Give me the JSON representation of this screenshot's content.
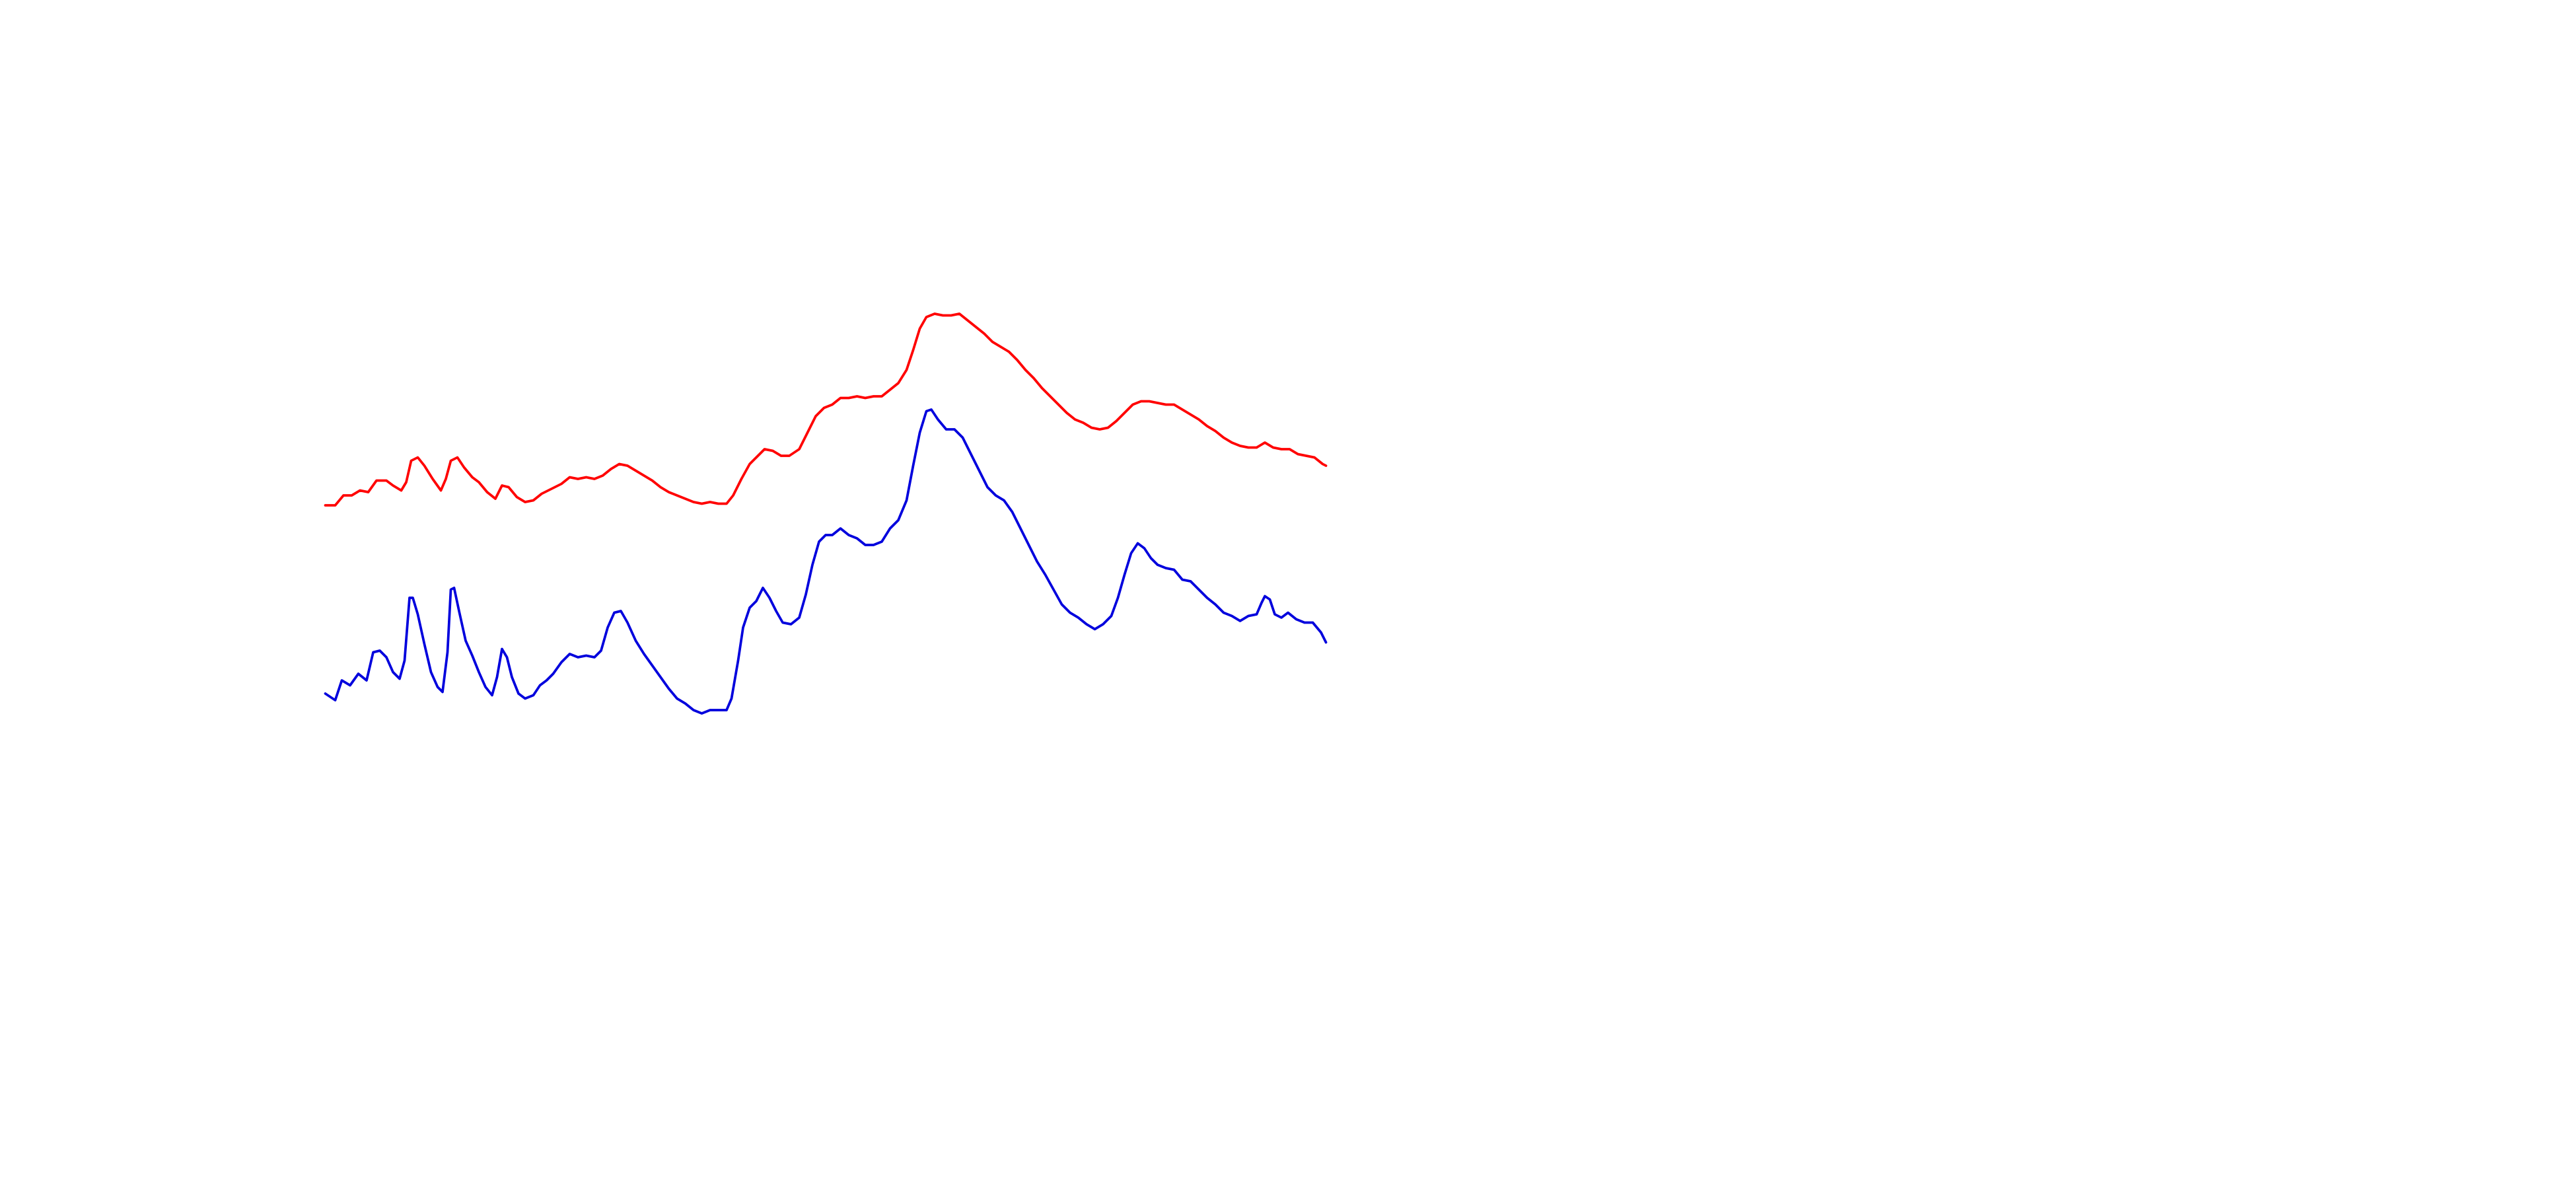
{
  "chart_data": {
    "type": "line",
    "xlim": [
      0,
      1560
    ],
    "ylim": [
      720,
      0
    ],
    "series": [
      {
        "color": "#ff0000",
        "x": [
          197,
          203,
          208,
          213,
          218,
          223,
          228,
          234,
          238,
          243,
          246,
          249,
          253,
          257,
          262,
          267,
          270,
          273,
          277,
          281,
          286,
          290,
          295,
          300,
          304,
          308,
          313,
          318,
          323,
          328,
          334,
          340,
          345,
          350,
          355,
          360,
          365,
          370,
          375,
          380,
          385,
          390,
          395,
          400,
          405,
          410,
          415,
          420,
          425,
          430,
          435,
          440,
          444,
          449,
          454,
          458,
          463,
          468,
          473,
          478,
          484,
          489,
          494,
          499,
          504,
          509,
          514,
          519,
          524,
          529,
          534,
          539,
          544,
          549,
          553,
          557,
          561,
          566,
          571,
          576,
          581,
          586,
          591,
          596,
          601,
          606,
          611,
          616,
          621,
          626,
          631,
          636,
          641,
          646,
          651,
          656,
          661,
          666,
          671,
          676,
          681,
          686,
          691,
          696,
          701,
          706,
          711,
          716,
          721,
          726,
          731,
          736,
          741,
          746,
          751,
          756,
          761,
          766,
          771,
          776,
          781,
          786,
          791,
          796,
          801,
          803
        ],
        "values": [
          306,
          306,
          300,
          300,
          297,
          298,
          291,
          291,
          294,
          297,
          292,
          279,
          277,
          282,
          290,
          297,
          290,
          279,
          277,
          283,
          289,
          292,
          298,
          302,
          294,
          295,
          301,
          304,
          303,
          299,
          296,
          293,
          289,
          290,
          289,
          290,
          288,
          284,
          281,
          282,
          285,
          288,
          291,
          295,
          298,
          300,
          302,
          304,
          305,
          304,
          305,
          305,
          300,
          290,
          281,
          277,
          272,
          273,
          276,
          276,
          272,
          262,
          252,
          247,
          245,
          241,
          241,
          240,
          241,
          240,
          240,
          236,
          232,
          224,
          212,
          199,
          192,
          190,
          191,
          191,
          190,
          194,
          198,
          202,
          207,
          210,
          213,
          218,
          224,
          229,
          235,
          240,
          245,
          250,
          254,
          256,
          259,
          260,
          259,
          255,
          250,
          245,
          243,
          243,
          244,
          245,
          245,
          248,
          251,
          254,
          258,
          261,
          265,
          268,
          270,
          271,
          271,
          268,
          271,
          272,
          272,
          275,
          276,
          277,
          281,
          282
        ]
      },
      {
        "color": "#0000dd",
        "x": [
          197,
          203,
          207,
          212,
          217,
          222,
          226,
          230,
          234,
          238,
          242,
          245,
          248,
          250,
          253,
          257,
          261,
          265,
          268,
          271,
          273,
          275,
          278,
          282,
          286,
          290,
          294,
          298,
          301,
          304,
          307,
          310,
          314,
          318,
          323,
          327,
          331,
          335,
          340,
          345,
          350,
          355,
          360,
          364,
          368,
          372,
          376,
          380,
          385,
          390,
          395,
          400,
          405,
          410,
          415,
          420,
          425,
          430,
          435,
          440,
          443,
          447,
          450,
          454,
          458,
          462,
          466,
          470,
          474,
          479,
          484,
          488,
          492,
          496,
          500,
          504,
          509,
          514,
          519,
          524,
          529,
          534,
          539,
          544,
          549,
          553,
          557,
          561,
          564,
          568,
          573,
          578,
          583,
          588,
          593,
          598,
          603,
          608,
          613,
          618,
          623,
          628,
          633,
          638,
          643,
          648,
          653,
          658,
          663,
          668,
          673,
          677,
          681,
          685,
          689,
          693,
          697,
          701,
          706,
          711,
          716,
          721,
          726,
          731,
          736,
          741,
          746,
          751,
          756,
          761,
          764,
          766,
          769,
          772,
          776,
          780,
          785,
          790,
          795,
          800,
          803
        ],
        "values": [
          420,
          424,
          412,
          415,
          408,
          412,
          395,
          394,
          398,
          407,
          411,
          400,
          362,
          362,
          372,
          390,
          407,
          416,
          419,
          395,
          357,
          356,
          370,
          388,
          397,
          407,
          416,
          421,
          410,
          393,
          398,
          410,
          420,
          423,
          421,
          415,
          412,
          408,
          401,
          396,
          398,
          397,
          398,
          394,
          380,
          371,
          370,
          377,
          388,
          396,
          403,
          410,
          417,
          423,
          426,
          430,
          432,
          430,
          430,
          430,
          423,
          400,
          380,
          368,
          364,
          356,
          362,
          370,
          377,
          378,
          374,
          360,
          342,
          328,
          324,
          324,
          320,
          324,
          326,
          330,
          330,
          328,
          320,
          315,
          303,
          282,
          262,
          249,
          248,
          254,
          260,
          260,
          265,
          275,
          285,
          295,
          300,
          303,
          310,
          320,
          330,
          340,
          348,
          357,
          366,
          371,
          374,
          378,
          381,
          378,
          373,
          362,
          348,
          335,
          329,
          332,
          338,
          342,
          344,
          345,
          351,
          352,
          357,
          362,
          366,
          371,
          373,
          376,
          373,
          372,
          365,
          361,
          363,
          372,
          374,
          371,
          375,
          377,
          377,
          383,
          389
        ]
      }
    ]
  }
}
